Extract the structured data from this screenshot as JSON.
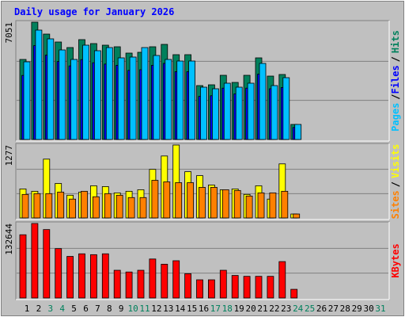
{
  "chart_data": [
    {
      "type": "bar",
      "title": "Daily usage for January 2026",
      "categories": [
        "1",
        "2",
        "3",
        "4",
        "5",
        "6",
        "7",
        "8",
        "9",
        "10",
        "11",
        "12",
        "13",
        "14",
        "15",
        "16",
        "17",
        "18",
        "19",
        "20",
        "21",
        "22",
        "23",
        "24",
        "25",
        "26",
        "27",
        "28",
        "29",
        "30",
        "31"
      ],
      "category_colors": [
        "#000000",
        "#000000",
        "#00805c",
        "#00805c",
        "#000000",
        "#000000",
        "#000000",
        "#000000",
        "#000000",
        "#00805c",
        "#00805c",
        "#000000",
        "#000000",
        "#000000",
        "#000000",
        "#000000",
        "#00805c",
        "#00805c",
        "#000000",
        "#000000",
        "#000000",
        "#000000",
        "#000000",
        "#00805c",
        "#00805c",
        "#000000",
        "#000000",
        "#000000",
        "#000000",
        "#000000",
        "#00805c"
      ],
      "legend_separator": "/",
      "ylim": [
        0,
        7051
      ],
      "yticks": [
        7051
      ],
      "series": [
        {
          "name": "Hits",
          "color": "#00805c",
          "values": [
            4812,
            7051,
            6336,
            5860,
            5527,
            6003,
            5765,
            5669,
            5574,
            5193,
            5241,
            5574,
            5717,
            5098,
            5098,
            3240,
            3287,
            3859,
            3430,
            3859,
            4907,
            3811,
            3907,
            905,
            0,
            0,
            0,
            0,
            0,
            0,
            0
          ]
        },
        {
          "name": "Files",
          "color": "#0000ff",
          "values": [
            3850,
            5641,
            5069,
            4688,
            4422,
            4802,
            4612,
            4535,
            4459,
            4154,
            4193,
            4459,
            4574,
            4078,
            4078,
            2592,
            2630,
            3087,
            2744,
            3087,
            3926,
            3049,
            3126,
            724,
            0,
            0,
            0,
            0,
            0,
            0,
            0
          ]
        },
        {
          "name": "Pages",
          "color": "#00c0ff",
          "values": [
            4669,
            6575,
            6050,
            5383,
            4812,
            5669,
            5336,
            5526,
            4907,
            4955,
            5526,
            5050,
            4812,
            4716,
            4716,
            3144,
            3049,
            3383,
            3144,
            3383,
            4574,
            3240,
            3716,
            905,
            0,
            0,
            0,
            0,
            0,
            0,
            0
          ]
        }
      ]
    },
    {
      "type": "bar",
      "legend_separator": "/",
      "ylim": [
        0,
        1277
      ],
      "yticks": [
        1277
      ],
      "series": [
        {
          "name": "Visits",
          "color": "#ffff00",
          "values": [
            508,
            467,
            1030,
            604,
            398,
            453,
            563,
            549,
            439,
            467,
            494,
            851,
            1085,
            1277,
            810,
            741,
            577,
            494,
            508,
            412,
            563,
            330,
            947,
            69,
            0,
            0,
            0,
            0,
            0,
            0,
            0
          ]
        },
        {
          "name": "Sites",
          "color": "#ff8000",
          "values": [
            412,
            426,
            426,
            453,
            330,
            467,
            371,
            426,
            398,
            357,
            357,
            659,
            632,
            618,
            618,
            536,
            536,
            494,
            481,
            384,
            439,
            439,
            467,
            69,
            0,
            0,
            0,
            0,
            0,
            0,
            0
          ]
        }
      ]
    },
    {
      "type": "bar",
      "ylim": [
        0,
        132644
      ],
      "yticks": [
        132644
      ],
      "series": [
        {
          "name": "KBytes",
          "color": "#ff0000",
          "values": [
            112591,
            132644,
            121847,
            87914,
            74034,
            78661,
            77118,
            78661,
            49356,
            46271,
            49356,
            69407,
            60153,
            66322,
            43186,
            32390,
            32390,
            49356,
            40102,
            38559,
            38559,
            38559,
            64780,
            15424,
            0,
            0,
            0,
            0,
            0,
            0,
            0
          ]
        }
      ]
    }
  ]
}
